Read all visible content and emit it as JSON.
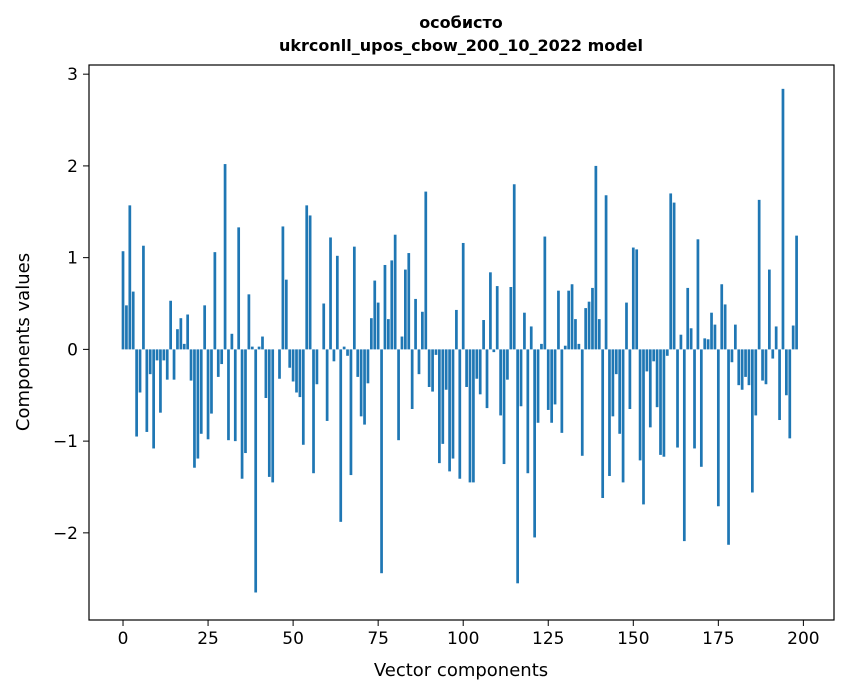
{
  "chart_data": {
    "type": "bar",
    "title": "особисто",
    "subtitle": "ukrconll_upos_cbow_200_10_2022 model",
    "xlabel": "Vector components",
    "ylabel": "Components values",
    "xlim": [
      -10,
      209
    ],
    "ylim": [
      -2.95,
      3.1
    ],
    "xticks": [
      0,
      25,
      50,
      75,
      100,
      125,
      150,
      175,
      200
    ],
    "xtick_labels": [
      "0",
      "25",
      "50",
      "75",
      "100",
      "125",
      "150",
      "175",
      "200"
    ],
    "yticks": [
      -2,
      -1,
      0,
      1,
      2,
      3
    ],
    "ytick_labels": [
      "−2",
      "−1",
      "0",
      "1",
      "2",
      "3"
    ],
    "grid": false,
    "bar_color": "#1f77b4",
    "values": [
      1.07,
      0.48,
      1.57,
      0.63,
      -0.95,
      -0.47,
      1.13,
      -0.9,
      -0.27,
      -1.08,
      -0.12,
      -0.69,
      -0.12,
      -0.33,
      0.53,
      -0.33,
      0.22,
      0.34,
      0.06,
      0.38,
      -0.34,
      -1.29,
      -1.19,
      -0.92,
      0.48,
      -0.98,
      -0.7,
      1.06,
      -0.3,
      -0.16,
      2.02,
      -0.99,
      0.17,
      -1.0,
      1.33,
      -1.41,
      -1.13,
      0.6,
      0.03,
      -2.65,
      0.03,
      0.14,
      -0.53,
      -1.39,
      -1.45,
      0.0,
      -0.32,
      1.34,
      0.76,
      -0.2,
      -0.35,
      -0.47,
      -0.52,
      -1.04,
      1.57,
      1.46,
      -1.35,
      -0.38,
      0.0,
      0.5,
      -0.78,
      1.22,
      -0.13,
      1.02,
      -1.88,
      0.03,
      -0.07,
      -1.37,
      1.12,
      -0.3,
      -0.73,
      -0.82,
      -0.37,
      0.34,
      0.75,
      0.51,
      -2.44,
      0.92,
      0.33,
      0.97,
      1.25,
      -0.99,
      0.14,
      0.87,
      1.05,
      -0.65,
      0.55,
      -0.27,
      0.41,
      1.72,
      -0.41,
      -0.46,
      -0.06,
      -1.24,
      -1.03,
      -0.44,
      -1.33,
      -1.19,
      0.43,
      -1.41,
      1.16,
      -0.41,
      -1.45,
      -1.45,
      -0.32,
      -0.49,
      0.32,
      -0.64,
      0.84,
      -0.03,
      0.69,
      -0.72,
      -1.25,
      -0.33,
      0.68,
      1.8,
      -2.55,
      -0.62,
      0.4,
      -1.35,
      0.25,
      -2.05,
      -0.8,
      0.06,
      1.23,
      -0.66,
      -0.8,
      -0.6,
      0.64,
      -0.91,
      0.04,
      0.64,
      0.71,
      0.33,
      0.06,
      -1.16,
      0.45,
      0.52,
      0.67,
      2.0,
      0.33,
      -1.62,
      1.68,
      -1.38,
      -0.73,
      -0.27,
      -0.92,
      -1.45,
      0.51,
      -0.65,
      1.11,
      1.09,
      -1.21,
      -1.69,
      -0.24,
      -0.85,
      -0.13,
      -0.63,
      -1.15,
      -1.17,
      -0.07,
      1.7,
      1.6,
      -1.07,
      0.16,
      -2.09,
      0.67,
      0.23,
      -1.08,
      1.2,
      -1.28,
      0.12,
      0.11,
      0.4,
      0.27,
      -1.71,
      0.71,
      0.49,
      -2.13,
      -0.14,
      0.27,
      -0.39,
      -0.44,
      -0.3,
      -0.39,
      -1.56,
      -0.72,
      1.63,
      -0.34,
      -0.38,
      0.87,
      -0.1,
      0.25,
      -0.77,
      2.84,
      -0.5,
      -0.97,
      0.26,
      1.24
    ]
  }
}
